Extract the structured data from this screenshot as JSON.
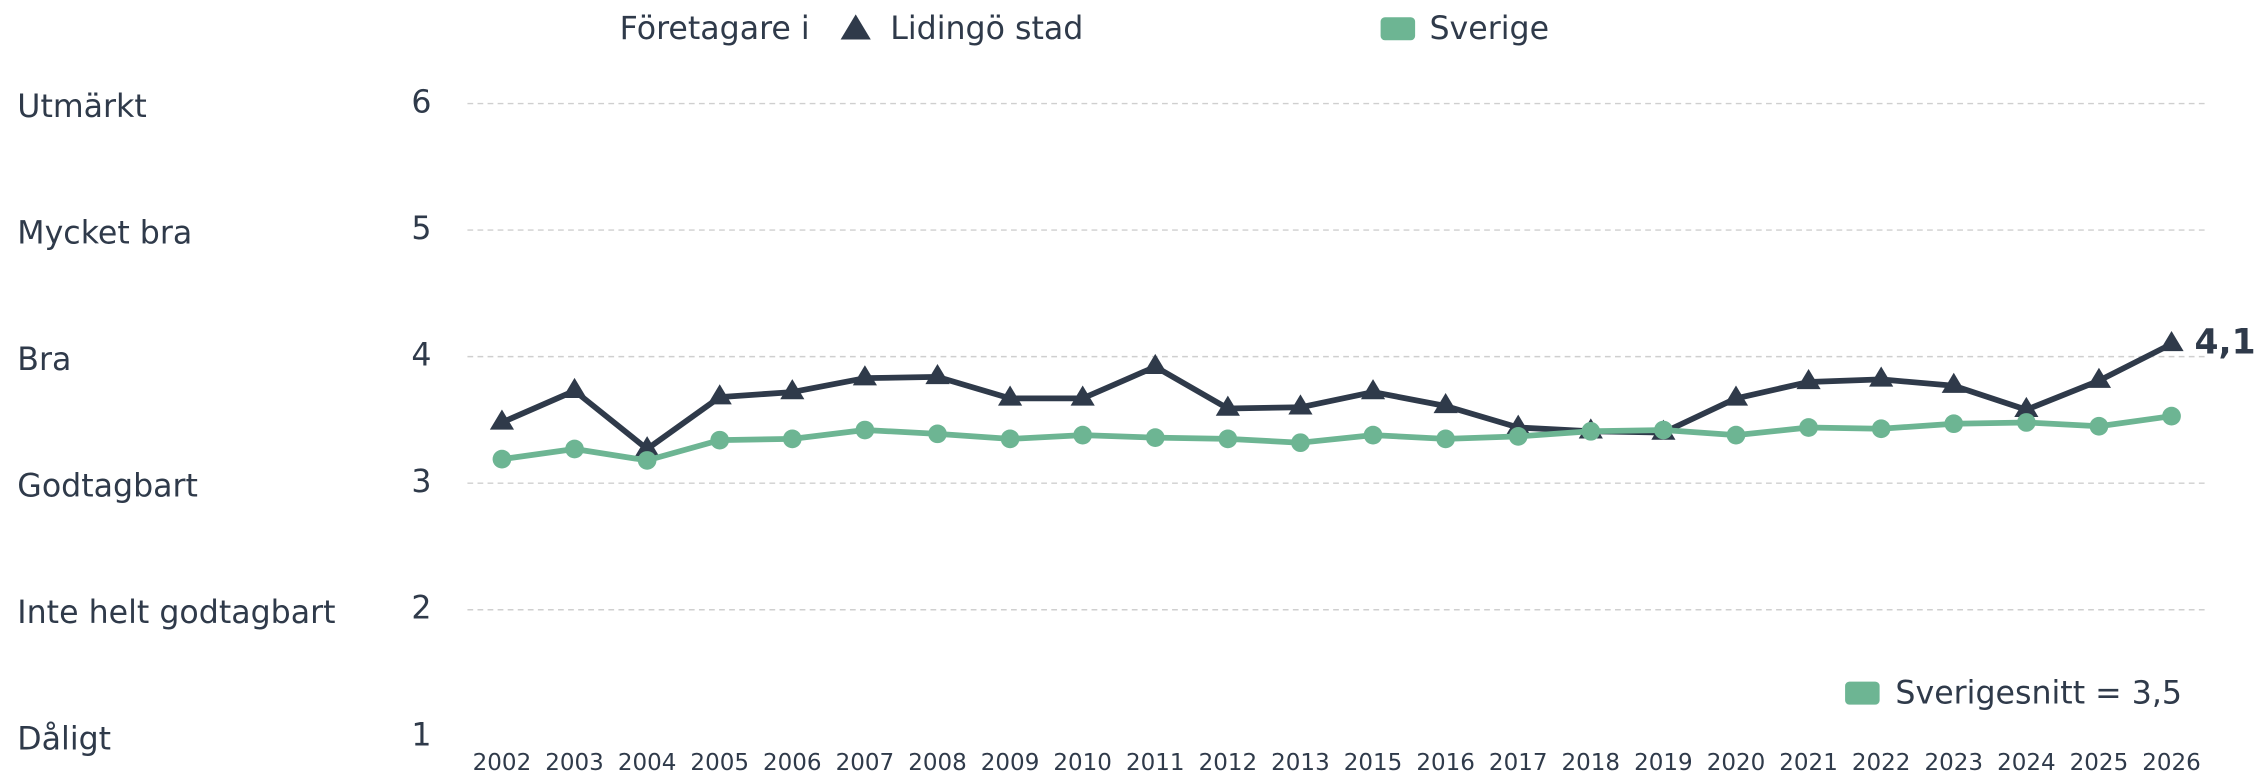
{
  "chart_data": {
    "type": "line",
    "legend_prefix": "Företagare i",
    "categories": [
      "2002",
      "2003",
      "2004",
      "2005",
      "2006",
      "2007",
      "2008",
      "2009",
      "2010",
      "2011",
      "2012",
      "2013",
      "2015",
      "2016",
      "2017",
      "2018",
      "2019",
      "2020",
      "2021",
      "2022",
      "2023",
      "2024",
      "2025",
      "2026"
    ],
    "series": [
      {
        "name": "Lidingö stad",
        "color": "#2f3a4a",
        "marker": "triangle",
        "values": [
          3.48,
          3.73,
          3.27,
          3.68,
          3.72,
          3.83,
          3.84,
          3.67,
          3.67,
          3.92,
          3.59,
          3.6,
          3.72,
          3.61,
          3.44,
          3.41,
          3.4,
          3.67,
          3.8,
          3.82,
          3.77,
          3.58,
          3.81,
          4.1
        ],
        "end_label": "4,1"
      },
      {
        "name": "Sverige",
        "color": "#6db593",
        "marker": "circle",
        "values": [
          3.19,
          3.27,
          3.18,
          3.34,
          3.35,
          3.42,
          3.39,
          3.35,
          3.38,
          3.36,
          3.35,
          3.32,
          3.38,
          3.35,
          3.37,
          3.41,
          3.42,
          3.38,
          3.44,
          3.43,
          3.47,
          3.48,
          3.45,
          3.53
        ]
      }
    ],
    "ylim": [
      1,
      6
    ],
    "yticks": [
      1,
      2,
      3,
      4,
      5,
      6
    ],
    "y_category_labels": [
      "Dåligt",
      "Inte helt godtagbart",
      "Godtagbart",
      "Bra",
      "Mycket bra",
      "Utmärkt"
    ],
    "annotation": "Sverigesnitt = 3,5",
    "grid": true
  }
}
